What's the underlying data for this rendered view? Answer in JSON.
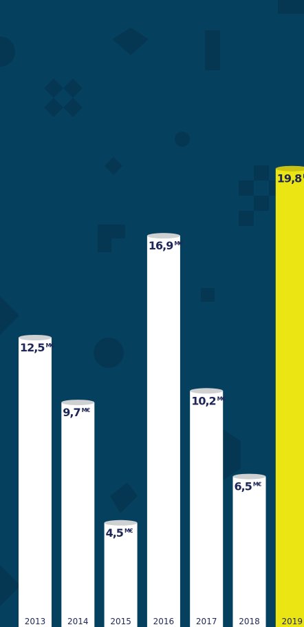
{
  "chart_data": {
    "type": "bar",
    "categories": [
      "2013",
      "2014",
      "2015",
      "2016",
      "2017",
      "2018",
      "2019"
    ],
    "values": [
      12.5,
      9.7,
      4.5,
      16.9,
      10.2,
      6.5,
      19.8
    ],
    "value_labels": [
      "12,5",
      "9,7",
      "4,5",
      "16,9",
      "10,2",
      "6,5",
      "19,8"
    ],
    "unit": "M€",
    "colors": [
      "#ffffff",
      "#ffffff",
      "#ffffff",
      "#ffffff",
      "#ffffff",
      "#ffffff",
      "#ece514"
    ]
  }
}
